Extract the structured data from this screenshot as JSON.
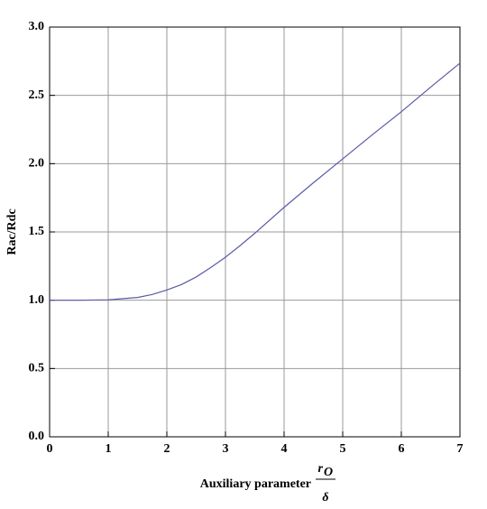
{
  "chart_data": {
    "type": "line",
    "xlabel": "Auxiliary parameter",
    "xlabel_fraction": {
      "numerator": "r",
      "subscript": "O",
      "denominator": "δ"
    },
    "ylabel": "Rac/Rdc",
    "x": [
      0,
      0.5,
      1,
      1.5,
      1.75,
      2,
      2.25,
      2.5,
      2.75,
      3,
      3.25,
      3.5,
      4,
      4.5,
      5,
      5.5,
      6,
      6.5,
      7
    ],
    "values": [
      1.0,
      1.0,
      1.003,
      1.02,
      1.042,
      1.075,
      1.115,
      1.17,
      1.24,
      1.315,
      1.4,
      1.49,
      1.68,
      1.86,
      2.035,
      2.21,
      2.38,
      2.56,
      2.736
    ],
    "color": "#5a5aa8",
    "xlim": [
      0,
      7
    ],
    "ylim": [
      0,
      3
    ],
    "xticks": [
      0,
      1,
      2,
      3,
      4,
      5,
      6,
      7
    ],
    "yticks": [
      {
        "value": 0,
        "label": "0.0"
      },
      {
        "value": 0.5,
        "label": "0.5"
      },
      {
        "value": 1,
        "label": "1.0"
      },
      {
        "value": 1.5,
        "label": "1.5"
      },
      {
        "value": 2,
        "label": "2.0"
      },
      {
        "value": 2.5,
        "label": "2.5"
      },
      {
        "value": 3,
        "label": "3.0"
      }
    ],
    "grid": true
  }
}
